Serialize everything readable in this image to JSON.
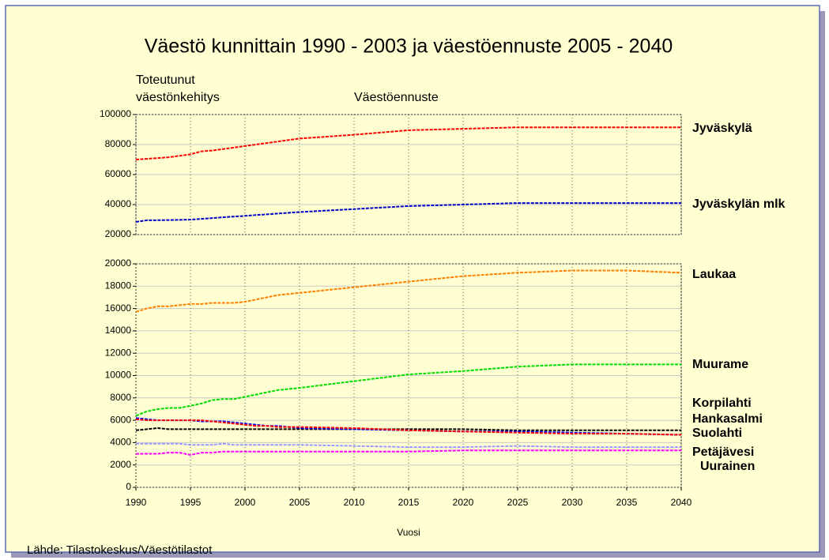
{
  "source": "Lähde: Tilastokeskus/Väestötilastot",
  "chart_data": [
    {
      "type": "line",
      "title": "Väestö kunnittain 1990 - 2003 ja väestöennuste 2005 - 2040",
      "annotations": [
        "Toteutunut",
        "väestönkehitys",
        "Väestöennuste"
      ],
      "x": [
        1990,
        1991,
        1992,
        1993,
        1994,
        1995,
        1996,
        1997,
        1998,
        1999,
        2000,
        2001,
        2002,
        2003,
        2004,
        2005,
        2010,
        2015,
        2020,
        2025,
        2030,
        2035,
        2040
      ],
      "xlim": [
        1990,
        2040
      ],
      "ylim": [
        20000,
        100000
      ],
      "yticks": [
        20000,
        40000,
        60000,
        80000,
        100000
      ],
      "grid": true,
      "series": [
        {
          "name": "Jyväskylä",
          "color": "#ff0000",
          "values": [
            70000,
            70500,
            71000,
            71500,
            72500,
            73500,
            75500,
            76000,
            77000,
            78000,
            79000,
            80000,
            81000,
            82000,
            83000,
            84000,
            86500,
            89500,
            90500,
            91500,
            91500,
            91500,
            91500
          ]
        },
        {
          "name": "Jyväskylän mlk",
          "color": "#0000cc",
          "values": [
            28500,
            29500,
            29600,
            29700,
            29800,
            30000,
            30500,
            31000,
            31500,
            32000,
            32500,
            33000,
            33500,
            34000,
            34500,
            35000,
            37000,
            39000,
            40000,
            41000,
            41000,
            41000,
            41000
          ]
        }
      ]
    },
    {
      "type": "line",
      "xlabel": "Vuosi",
      "x": [
        1990,
        1991,
        1992,
        1993,
        1994,
        1995,
        1996,
        1997,
        1998,
        1999,
        2000,
        2001,
        2002,
        2003,
        2004,
        2005,
        2010,
        2015,
        2020,
        2025,
        2030,
        2035,
        2040
      ],
      "xlim": [
        1990,
        2040
      ],
      "xticks": [
        1990,
        1995,
        2000,
        2005,
        2010,
        2015,
        2020,
        2025,
        2030,
        2035,
        2040
      ],
      "ylim": [
        0,
        20000
      ],
      "yticks": [
        0,
        2000,
        4000,
        6000,
        8000,
        10000,
        12000,
        14000,
        16000,
        18000,
        20000
      ],
      "grid": true,
      "series": [
        {
          "name": "Laukaa",
          "color": "#ff8000",
          "values": [
            15700,
            16000,
            16200,
            16200,
            16300,
            16400,
            16400,
            16500,
            16500,
            16500,
            16600,
            16800,
            17000,
            17200,
            17300,
            17400,
            17900,
            18400,
            18900,
            19200,
            19400,
            19400,
            19200
          ]
        },
        {
          "name": "Muurame",
          "color": "#00dd00",
          "values": [
            6400,
            6800,
            7000,
            7100,
            7100,
            7300,
            7500,
            7800,
            7900,
            7900,
            8100,
            8300,
            8500,
            8700,
            8800,
            8900,
            9500,
            10100,
            10400,
            10800,
            11000,
            11000,
            11000
          ]
        },
        {
          "name": "Korpilahti",
          "color": "#000000",
          "values": [
            5100,
            5200,
            5300,
            5200,
            5200,
            5200,
            5200,
            5200,
            5200,
            5200,
            5200,
            5200,
            5200,
            5200,
            5200,
            5200,
            5200,
            5200,
            5200,
            5100,
            5100,
            5100,
            5100
          ]
        },
        {
          "name": "Hankasalmi",
          "color": "#0000ff",
          "values": [
            6200,
            6100,
            6000,
            6000,
            6000,
            6000,
            5900,
            5900,
            5900,
            5800,
            5700,
            5600,
            5500,
            5500,
            5400,
            5300,
            5200,
            5100,
            5000,
            5000,
            4900,
            4800,
            4700
          ]
        },
        {
          "name": "Suolahti",
          "color": "#ff0000",
          "values": [
            6100,
            6000,
            6000,
            6000,
            6000,
            6000,
            6000,
            5900,
            5800,
            5700,
            5600,
            5500,
            5500,
            5400,
            5400,
            5400,
            5300,
            5100,
            5000,
            4900,
            4800,
            4800,
            4700
          ]
        },
        {
          "name": "Petäjävesi",
          "color": "#9999ff",
          "values": [
            3900,
            3900,
            3900,
            3900,
            3900,
            3800,
            3800,
            3800,
            3900,
            3800,
            3800,
            3800,
            3800,
            3800,
            3800,
            3800,
            3700,
            3600,
            3600,
            3700,
            3600,
            3600,
            3600
          ]
        },
        {
          "name": "Uurainen",
          "color": "#ff00ff",
          "values": [
            3000,
            3000,
            3000,
            3100,
            3100,
            2900,
            3100,
            3100,
            3200,
            3200,
            3200,
            3200,
            3200,
            3200,
            3200,
            3200,
            3200,
            3200,
            3300,
            3300,
            3300,
            3300,
            3300
          ]
        }
      ]
    }
  ]
}
